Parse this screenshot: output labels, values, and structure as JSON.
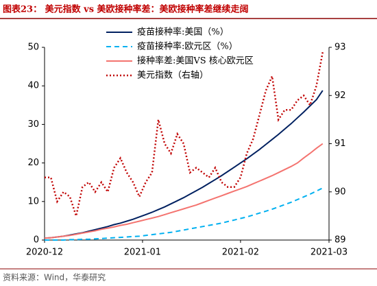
{
  "chart_data": {
    "type": "line",
    "title": "图表23：  美元指数 vs 美欧接种率差：美欧接种率差继续走阔",
    "source": "资料来源：Wind，华泰研究",
    "x": [
      0,
      2,
      4,
      6,
      8,
      10,
      12,
      14,
      16,
      18,
      20,
      22,
      24,
      26,
      28,
      30,
      32,
      34,
      36,
      38,
      40,
      42,
      44,
      46,
      48,
      50,
      52,
      54,
      56,
      58,
      60,
      62,
      64,
      66,
      68,
      70,
      72,
      74,
      76,
      78,
      80,
      82,
      84,
      86,
      88
    ],
    "xlim": [
      0,
      90
    ],
    "xticks": [
      {
        "value": 0,
        "label": "2020-12"
      },
      {
        "value": 31,
        "label": "2021-01"
      },
      {
        "value": 62,
        "label": "2021-02"
      },
      {
        "value": 90,
        "label": "2021-03"
      }
    ],
    "ylim": [
      0,
      50
    ],
    "yticks": [
      0,
      10,
      20,
      30,
      40,
      50
    ],
    "y2lim": [
      89,
      93
    ],
    "y2ticks": [
      89,
      90,
      91,
      92,
      93
    ],
    "series": [
      {
        "name": "疫苗接种率:美国（%）",
        "color": "#002060",
        "style": "solid",
        "values": [
          0.5,
          0.6,
          0.8,
          1.0,
          1.3,
          1.6,
          1.9,
          2.3,
          2.7,
          3.1,
          3.5,
          4.0,
          4.4,
          4.9,
          5.4,
          6.0,
          6.6,
          7.2,
          7.9,
          8.6,
          9.4,
          10.2,
          11.0,
          11.9,
          12.8,
          13.7,
          14.7,
          15.7,
          16.7,
          17.8,
          18.9,
          20.0,
          21.1,
          22.3,
          23.5,
          24.8,
          26.1,
          27.4,
          28.8,
          30.2,
          31.7,
          33.2,
          34.8,
          36.4,
          38.8
        ]
      },
      {
        "name": "疫苗接种率:欧元区（%）",
        "color": "#00b0f0",
        "style": "dashed",
        "values": [
          0,
          0,
          0,
          0,
          0.1,
          0.1,
          0.2,
          0.2,
          0.3,
          0.4,
          0.5,
          0.6,
          0.7,
          0.8,
          0.9,
          1.0,
          1.2,
          1.4,
          1.6,
          1.8,
          2.0,
          2.3,
          2.6,
          2.9,
          3.2,
          3.5,
          3.8,
          4.1,
          4.4,
          4.8,
          5.2,
          5.6,
          6.0,
          6.5,
          7.0,
          7.5,
          8.0,
          8.6,
          9.2,
          9.8,
          10.5,
          11.2,
          11.9,
          12.7,
          13.5
        ]
      },
      {
        "name": "接种率差:美国VS 核心欧元区",
        "color": "#f4736f",
        "style": "solid",
        "values": [
          0.5,
          0.6,
          0.8,
          1.0,
          1.2,
          1.5,
          1.8,
          2.1,
          2.4,
          2.8,
          3.1,
          3.4,
          3.8,
          4.1,
          4.5,
          4.9,
          5.3,
          5.7,
          6.1,
          6.6,
          7.1,
          7.6,
          8.1,
          8.6,
          9.1,
          9.7,
          10.3,
          10.9,
          11.5,
          12.1,
          12.7,
          13.3,
          13.9,
          14.6,
          15.3,
          16.0,
          16.7,
          17.5,
          18.3,
          19.1,
          20.0,
          21.3,
          22.5,
          23.8,
          25.0
        ]
      },
      {
        "name": "美元指数（右轴）",
        "color": "#c00000",
        "style": "dotted",
        "axis": "y2",
        "values": [
          90.3,
          90.3,
          89.8,
          90.0,
          89.9,
          89.5,
          90.1,
          90.2,
          90.0,
          90.2,
          90.0,
          90.5,
          90.7,
          90.4,
          90.2,
          89.9,
          90.2,
          90.4,
          91.5,
          91.0,
          90.8,
          91.2,
          91.0,
          90.4,
          90.5,
          90.4,
          90.3,
          90.5,
          90.2,
          90.1,
          90.1,
          90.3,
          90.8,
          91.1,
          91.6,
          92.1,
          92.4,
          91.5,
          91.7,
          91.7,
          91.9,
          92.0,
          91.8,
          92.2,
          92.9
        ]
      }
    ]
  }
}
